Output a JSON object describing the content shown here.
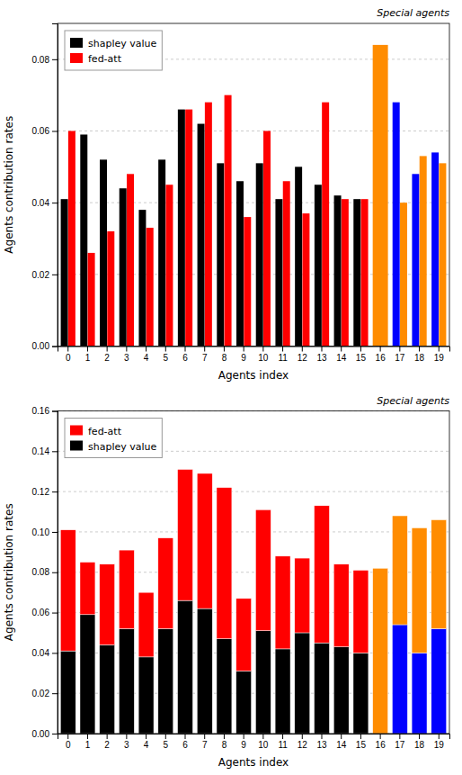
{
  "chart_data": [
    {
      "type": "bar",
      "stacked": false,
      "x_label": "Agents index",
      "y_label": "Agents contribution rates",
      "annotations": [
        "Special agents"
      ],
      "categories": [
        "0",
        "1",
        "2",
        "3",
        "4",
        "5",
        "6",
        "7",
        "8",
        "9",
        "10",
        "11",
        "12",
        "13",
        "14",
        "15",
        "16",
        "17",
        "18",
        "19"
      ],
      "series": [
        {
          "name": "shapley value",
          "color": "#000000",
          "colors": [
            "#000000",
            "#000000",
            "#000000",
            "#000000",
            "#000000",
            "#000000",
            "#000000",
            "#000000",
            "#000000",
            "#000000",
            "#000000",
            "#000000",
            "#000000",
            "#000000",
            "#000000",
            "#000000",
            "#0000ff",
            "#0000ff",
            "#0000ff",
            "#0000ff"
          ],
          "values": [
            0.041,
            0.059,
            0.052,
            0.044,
            0.038,
            0.052,
            0.066,
            0.062,
            0.051,
            0.046,
            0.051,
            0.041,
            0.05,
            0.045,
            0.042,
            0.041,
            null,
            0.068,
            0.048,
            0.054
          ]
        },
        {
          "name": "fed-att",
          "color": "#ff0000",
          "colors": [
            "#ff0000",
            "#ff0000",
            "#ff0000",
            "#ff0000",
            "#ff0000",
            "#ff0000",
            "#ff0000",
            "#ff0000",
            "#ff0000",
            "#ff0000",
            "#ff0000",
            "#ff0000",
            "#ff0000",
            "#ff0000",
            "#ff0000",
            "#ff0000",
            "#ff8c00",
            "#ff8c00",
            "#ff8c00",
            "#ff8c00"
          ],
          "values": [
            0.06,
            0.026,
            0.032,
            0.048,
            0.033,
            0.045,
            0.066,
            0.068,
            0.07,
            0.036,
            0.06,
            0.046,
            0.037,
            0.068,
            0.041,
            0.041,
            0.084,
            0.04,
            0.053,
            0.051
          ]
        }
      ],
      "ylim": [
        0.0,
        0.09
      ],
      "yticks": [
        {
          "value": 0,
          "label": "0.00"
        },
        0.02,
        0.04,
        0.06,
        0.08
      ],
      "grid": true,
      "legend": "upper left"
    },
    {
      "type": "bar",
      "stacked": true,
      "x_label": "Agents index",
      "y_label": "Agents contribution rates",
      "annotations": [
        "Special agents"
      ],
      "categories": [
        "0",
        "1",
        "2",
        "3",
        "4",
        "5",
        "6",
        "7",
        "8",
        "9",
        "10",
        "11",
        "12",
        "13",
        "14",
        "15",
        "16",
        "17",
        "18",
        "19"
      ],
      "series": [
        {
          "name": "fed-att",
          "color": "#ff0000",
          "colors": [
            "#ff0000",
            "#ff0000",
            "#ff0000",
            "#ff0000",
            "#ff0000",
            "#ff0000",
            "#ff0000",
            "#ff0000",
            "#ff0000",
            "#ff0000",
            "#ff0000",
            "#ff0000",
            "#ff0000",
            "#ff0000",
            "#ff0000",
            "#ff0000",
            "#ff8c00",
            "#ff8c00",
            "#ff8c00",
            "#ff8c00"
          ],
          "values": [
            0.06,
            0.026,
            0.04,
            0.039,
            0.032,
            0.045,
            0.065,
            0.067,
            0.075,
            0.036,
            0.06,
            0.046,
            0.037,
            0.068,
            0.041,
            0.041,
            0.082,
            0.054,
            0.062,
            0.054
          ]
        },
        {
          "name": "shapley value",
          "color": "#000000",
          "colors": [
            "#000000",
            "#000000",
            "#000000",
            "#000000",
            "#000000",
            "#000000",
            "#000000",
            "#000000",
            "#000000",
            "#000000",
            "#000000",
            "#000000",
            "#000000",
            "#000000",
            "#000000",
            "#000000",
            "#0000ff",
            "#0000ff",
            "#0000ff",
            "#0000ff"
          ],
          "values": [
            0.041,
            0.059,
            0.044,
            0.052,
            0.038,
            0.052,
            0.066,
            0.062,
            0.047,
            0.031,
            0.051,
            0.042,
            0.05,
            0.045,
            0.043,
            0.04,
            null,
            0.054,
            0.04,
            0.052
          ]
        }
      ],
      "ylim": [
        0.0,
        0.16
      ],
      "yticks": [
        {
          "value": 0,
          "label": "0.00"
        },
        0.02,
        0.04,
        0.06,
        0.08,
        {
          "value": 0.1,
          "label": "0.10"
        },
        0.12,
        0.14,
        0.16
      ],
      "grid": true,
      "legend": "upper left"
    }
  ]
}
